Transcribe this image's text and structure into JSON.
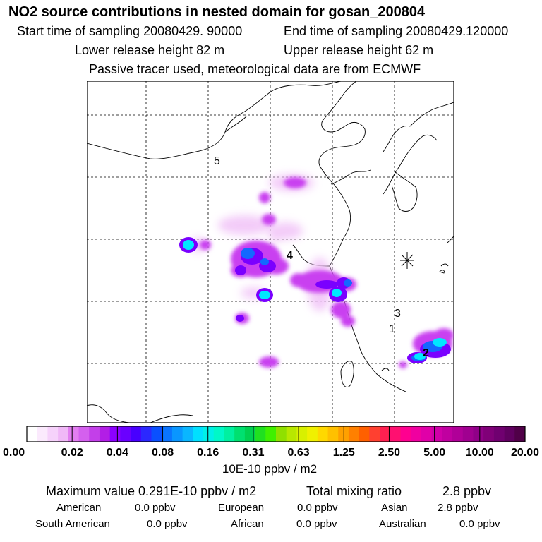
{
  "header": {
    "title": "NO2 source contributions in nested domain for gosan_200804",
    "start_label": "Start time of sampling 20080429. 90000",
    "end_label": "End time of sampling 20080429.120000",
    "lower_label": "Lower release height   82 m",
    "upper_label": "Upper release height   62 m",
    "note": "Passive tracer used, meteorological data are from ECMWF"
  },
  "map": {
    "region_labels": [
      {
        "id": "5",
        "text": "5"
      },
      {
        "id": "4",
        "text": "4"
      },
      {
        "id": "3",
        "text": "3"
      },
      {
        "id": "2",
        "text": "2"
      },
      {
        "id": "1",
        "text": "1"
      }
    ],
    "receptor": "gosan",
    "colors": {
      "light": "#f0c0f8",
      "mid": "#c040f0",
      "purple": "#8000ff",
      "blue": "#1060ff",
      "cyan": "#00e8ff",
      "coast": "#000000"
    }
  },
  "colorbar": {
    "tick_labels": [
      "0.00",
      "0.02",
      "0.04",
      "0.08",
      "0.16",
      "0.31",
      "0.63",
      "1.25",
      "2.50",
      "5.00",
      "10.00",
      "20.00"
    ],
    "unit": "10E-10 ppbv / m2",
    "colors": [
      "#ffffff",
      "#fbeafd",
      "#f6d2fb",
      "#f0b8f7",
      "#e27ef0",
      "#d460ee",
      "#c33fe9",
      "#b21ee6",
      "#8c00ff",
      "#6a00ff",
      "#4800ff",
      "#2b28ff",
      "#0a50ff",
      "#0a74ff",
      "#0a96ff",
      "#0ab6ff",
      "#00e0ff",
      "#00f0e8",
      "#00f8c8",
      "#00f0a0",
      "#00e070",
      "#00d050",
      "#20e020",
      "#40f000",
      "#90e000",
      "#b8e800",
      "#d8f000",
      "#f0f000",
      "#ffd800",
      "#ffc000",
      "#ffa000",
      "#ff8000",
      "#ff6000",
      "#ff4030",
      "#ff2050",
      "#ff1070",
      "#ff0090",
      "#f000a0",
      "#e000a8",
      "#d000a8",
      "#c000a0",
      "#b00098",
      "#a00090",
      "#900088",
      "#800078",
      "#700070",
      "#600060",
      "#500048"
    ]
  },
  "footer": {
    "max_label": "Maximum value  0.291E-10 ppbv / m2",
    "total_label": "Total mixing ratio",
    "total_value": "2.8 ppbv",
    "contributions": [
      {
        "label": "American",
        "value": "0.0 ppbv"
      },
      {
        "label": "European",
        "value": "0.0 ppbv"
      },
      {
        "label": "Asian",
        "value": "2.8 ppbv"
      },
      {
        "label": "South American",
        "value": "0.0 ppbv"
      },
      {
        "label": "African",
        "value": "0.0 ppbv"
      },
      {
        "label": "Australian",
        "value": "0.0 ppbv"
      }
    ]
  }
}
